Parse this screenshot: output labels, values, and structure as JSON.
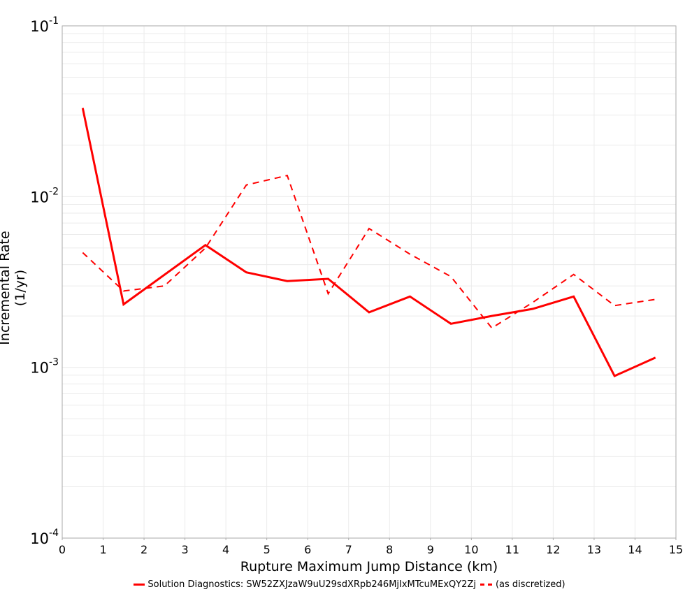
{
  "chart_data": {
    "type": "line",
    "title": "",
    "xlabel": "Rupture Maximum Jump Distance (km)",
    "ylabel": "Incremental Rate (1/yr)",
    "xlim": [
      0,
      15
    ],
    "ylim": [
      0.0001,
      0.1
    ],
    "yscale": "log",
    "grid": true,
    "legend_position": "bottom",
    "x_ticks": [
      "0",
      "1",
      "2",
      "3",
      "4",
      "5",
      "6",
      "7",
      "8",
      "9",
      "10",
      "11",
      "12",
      "13",
      "14",
      "15"
    ],
    "y_ticks": [
      {
        "base": "10",
        "exp": "-1",
        "value": 0.1
      },
      {
        "base": "10",
        "exp": "-2",
        "value": 0.01
      },
      {
        "base": "10",
        "exp": "-3",
        "value": 0.001
      },
      {
        "base": "10",
        "exp": "-4",
        "value": 0.0001
      }
    ],
    "series": [
      {
        "name": "Solution Diagnostics: SW52ZXJzaW9uU29sdXRpb246MjIxMTcuMExQY2Zj",
        "style": "solid",
        "color": "#ff0000",
        "x": [
          0.5,
          1.5,
          3.5,
          4.5,
          5.5,
          6.5,
          7.5,
          8.5,
          9.5,
          10.5,
          11.5,
          12.5,
          13.5,
          14.5
        ],
        "values": [
          0.033,
          0.00234,
          0.0052,
          0.0036,
          0.0032,
          0.0033,
          0.0021,
          0.0026,
          0.0018,
          0.002,
          0.0022,
          0.0026,
          0.00089,
          0.00114
        ]
      },
      {
        "name": "(as discretized)",
        "style": "dashed",
        "color": "#ff0000",
        "x": [
          0.5,
          1.5,
          2.5,
          3.5,
          4.5,
          5.5,
          6.5,
          7.5,
          8.5,
          9.5,
          10.5,
          11.5,
          12.5,
          13.5,
          14.5
        ],
        "values": [
          0.0047,
          0.0028,
          0.003,
          0.005,
          0.0117,
          0.0133,
          0.0027,
          0.0065,
          0.0046,
          0.0034,
          0.0017,
          0.0024,
          0.0035,
          0.0023,
          0.0025
        ]
      }
    ]
  },
  "legend": {
    "items": [
      {
        "label": "Solution Diagnostics: SW52ZXJzaW9uU29sdXRpb246MjIxMTcuMExQY2Zj"
      },
      {
        "label": "(as discretized)"
      }
    ]
  }
}
